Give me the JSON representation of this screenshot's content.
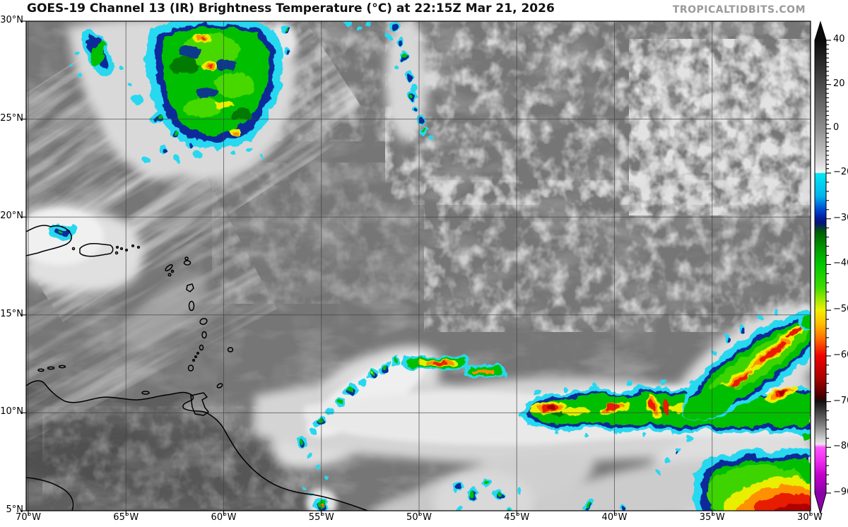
{
  "header": {
    "title": "GOES-19 Channel 13 (IR) Brightness Temperature (°C) at 22:15Z Mar 21, 2026",
    "watermark": "TROPICALTIDBITS.COM"
  },
  "map": {
    "satellite": "GOES-19",
    "channel": "Channel 13 (IR)",
    "product": "Brightness Temperature",
    "unit": "°C",
    "valid_time": "22:15Z Mar 21, 2026",
    "lat_labels": [
      "30°N",
      "25°N",
      "20°N",
      "15°N",
      "10°N",
      "5°N"
    ],
    "lon_labels": [
      "70°W",
      "65°W",
      "60°W",
      "55°W",
      "50°W",
      "45°W",
      "40°W",
      "35°W",
      "30°W"
    ]
  },
  "colorbar": {
    "unit": "°C",
    "tick_labels": [
      "40",
      "20",
      "0",
      "−20",
      "−30",
      "−40",
      "−50",
      "−60",
      "−70",
      "−80",
      "−90"
    ],
    "tick_values": [
      40,
      20,
      0,
      -20,
      -30,
      -40,
      -50,
      -60,
      -70,
      -80,
      -90
    ],
    "minor_tick_step": 2,
    "range_top": 40,
    "range_bottom": -90,
    "scale_note_values": {
      "gray_section": [
        40,
        -20
      ],
      "color_section": [
        -20,
        -90
      ]
    },
    "stops": [
      {
        "t": 40,
        "c": "#0a0a0a"
      },
      {
        "t": 20,
        "c": "#4a4a4a"
      },
      {
        "t": 0,
        "c": "#8e8e8e"
      },
      {
        "t": -19,
        "c": "#f2f2f2"
      },
      {
        "t": -20,
        "c": "#00e8f2"
      },
      {
        "t": -27,
        "c": "#0048d2"
      },
      {
        "t": -30,
        "c": "#001a9a"
      },
      {
        "t": -33,
        "c": "#005f00"
      },
      {
        "t": -40,
        "c": "#00c800"
      },
      {
        "t": -47,
        "c": "#aaea00"
      },
      {
        "t": -50,
        "c": "#f0f000"
      },
      {
        "t": -55,
        "c": "#ff9000"
      },
      {
        "t": -60,
        "c": "#f00000"
      },
      {
        "t": -67,
        "c": "#6a0000"
      },
      {
        "t": -70,
        "c": "#121212"
      },
      {
        "t": -76,
        "c": "#8e8e8e"
      },
      {
        "t": -79,
        "c": "#e6e6e6"
      },
      {
        "t": -80,
        "c": "#ff54ff"
      },
      {
        "t": -86,
        "c": "#c400cc"
      },
      {
        "t": -90,
        "c": "#8a00a8"
      }
    ]
  },
  "palette": {
    "ocean_gray": "#767676",
    "land_gray": "#5e5e5e",
    "cloud_light": "#b8b8b8",
    "cloud_white": "#ececec",
    "cold_cyan": "#28d8f0",
    "cold_navy": "#0a2a9a",
    "cold_green": "#00bf00",
    "cold_yellow": "#eaee00",
    "cold_orange": "#ff9000",
    "cold_red": "#e81e00"
  }
}
